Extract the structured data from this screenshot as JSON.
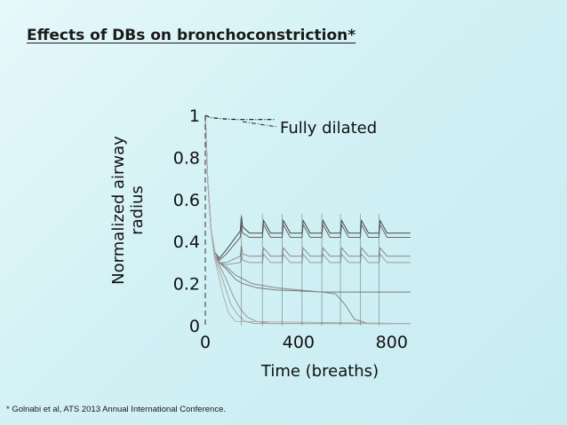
{
  "slide": {
    "title": "Effects of DBs on bronchoconstriction*",
    "footnote": "* Golnabi et al, ATS 2013 Annual International Conference."
  },
  "chart_data": {
    "type": "line",
    "title": "",
    "xlabel": "Time (breaths)",
    "ylabel_line1": "Normalized airway",
    "ylabel_line2": "radius",
    "xlim": [
      0,
      900
    ],
    "ylim": [
      0,
      1
    ],
    "x_ticks": [
      0,
      400,
      800
    ],
    "x_tick_labels": [
      "0",
      "400",
      "800"
    ],
    "y_ticks": [
      0,
      0.2,
      0.4,
      0.6,
      0.8,
      1
    ],
    "y_tick_labels": [
      "0",
      "0.2",
      "0.4",
      "0.6",
      "0.8",
      "1"
    ],
    "grid": false,
    "deep_breath_times": [
      155,
      245,
      330,
      415,
      500,
      580,
      665,
      745
    ],
    "annotation": {
      "text": "Fully dilated",
      "x": 330,
      "y": 0.98
    },
    "series": [
      {
        "x": [
          0,
          20,
          60,
          100,
          140,
          200,
          300
        ],
        "values": [
          1.0,
          0.99,
          0.985,
          0.982,
          0.98,
          0.98,
          0.98
        ]
      },
      {
        "x": [
          0,
          10,
          25,
          40,
          60,
          90,
          150,
          155,
          160,
          190,
          245,
          250,
          280,
          330,
          335,
          365,
          415,
          420,
          450,
          500,
          505,
          535,
          580,
          585,
          615,
          665,
          670,
          700,
          745,
          750,
          780,
          880
        ],
        "values": [
          1.0,
          0.7,
          0.45,
          0.35,
          0.32,
          0.36,
          0.45,
          0.52,
          0.47,
          0.44,
          0.44,
          0.5,
          0.44,
          0.44,
          0.5,
          0.44,
          0.44,
          0.5,
          0.44,
          0.44,
          0.5,
          0.44,
          0.44,
          0.5,
          0.44,
          0.44,
          0.5,
          0.44,
          0.44,
          0.5,
          0.44,
          0.44
        ]
      },
      {
        "x": [
          0,
          10,
          25,
          40,
          60,
          90,
          150,
          155,
          160,
          190,
          245,
          250,
          280,
          330,
          335,
          365,
          415,
          420,
          450,
          500,
          505,
          535,
          580,
          585,
          615,
          665,
          670,
          700,
          745,
          750,
          780,
          880
        ],
        "values": [
          1.0,
          0.7,
          0.45,
          0.35,
          0.31,
          0.34,
          0.42,
          0.48,
          0.44,
          0.42,
          0.42,
          0.48,
          0.42,
          0.42,
          0.48,
          0.42,
          0.42,
          0.48,
          0.42,
          0.42,
          0.48,
          0.42,
          0.42,
          0.48,
          0.42,
          0.42,
          0.48,
          0.42,
          0.42,
          0.48,
          0.42,
          0.42
        ]
      },
      {
        "x": [
          0,
          10,
          25,
          40,
          60,
          90,
          150,
          155,
          160,
          190,
          245,
          250,
          280,
          330,
          335,
          365,
          415,
          420,
          450,
          500,
          505,
          535,
          580,
          585,
          615,
          665,
          670,
          700,
          745,
          750,
          780,
          880
        ],
        "values": [
          1.0,
          0.7,
          0.45,
          0.35,
          0.3,
          0.3,
          0.33,
          0.38,
          0.34,
          0.33,
          0.33,
          0.37,
          0.33,
          0.33,
          0.37,
          0.33,
          0.33,
          0.37,
          0.33,
          0.33,
          0.37,
          0.33,
          0.33,
          0.37,
          0.33,
          0.33,
          0.37,
          0.33,
          0.33,
          0.37,
          0.33,
          0.33
        ]
      },
      {
        "x": [
          0,
          10,
          25,
          40,
          60,
          90,
          150,
          155,
          160,
          190,
          245,
          250,
          280,
          330,
          335,
          365,
          415,
          420,
          450,
          500,
          505,
          535,
          580,
          585,
          615,
          665,
          670,
          700,
          745,
          750,
          780,
          880
        ],
        "values": [
          1.0,
          0.7,
          0.45,
          0.35,
          0.3,
          0.29,
          0.3,
          0.34,
          0.31,
          0.3,
          0.3,
          0.34,
          0.3,
          0.3,
          0.34,
          0.3,
          0.3,
          0.34,
          0.3,
          0.3,
          0.34,
          0.3,
          0.3,
          0.34,
          0.3,
          0.3,
          0.34,
          0.3,
          0.3,
          0.34,
          0.3,
          0.3
        ]
      },
      {
        "x": [
          0,
          10,
          25,
          40,
          60,
          90,
          130,
          160,
          220,
          300,
          400,
          500,
          600,
          700,
          880
        ],
        "values": [
          1.0,
          0.7,
          0.45,
          0.33,
          0.3,
          0.27,
          0.22,
          0.2,
          0.18,
          0.17,
          0.165,
          0.16,
          0.16,
          0.16,
          0.16
        ]
      },
      {
        "x": [
          0,
          10,
          25,
          40,
          60,
          90,
          130,
          200,
          300,
          400,
          500,
          560,
          600,
          640,
          700,
          880
        ],
        "values": [
          1.0,
          0.7,
          0.45,
          0.33,
          0.3,
          0.28,
          0.24,
          0.2,
          0.18,
          0.17,
          0.16,
          0.15,
          0.1,
          0.03,
          0.01,
          0.01
        ]
      },
      {
        "x": [
          0,
          10,
          25,
          40,
          60,
          90,
          120,
          150,
          180,
          220,
          280,
          880
        ],
        "values": [
          1.0,
          0.7,
          0.45,
          0.33,
          0.29,
          0.22,
          0.14,
          0.08,
          0.04,
          0.02,
          0.01,
          0.01
        ]
      },
      {
        "x": [
          0,
          10,
          25,
          40,
          60,
          80,
          110,
          140,
          170,
          210,
          880
        ],
        "values": [
          1.0,
          0.7,
          0.45,
          0.32,
          0.27,
          0.2,
          0.1,
          0.05,
          0.02,
          0.01,
          0.01
        ]
      },
      {
        "x": [
          0,
          10,
          25,
          40,
          55,
          75,
          100,
          130,
          880
        ],
        "values": [
          1.0,
          0.7,
          0.45,
          0.32,
          0.25,
          0.15,
          0.06,
          0.02,
          0.01
        ]
      }
    ]
  }
}
